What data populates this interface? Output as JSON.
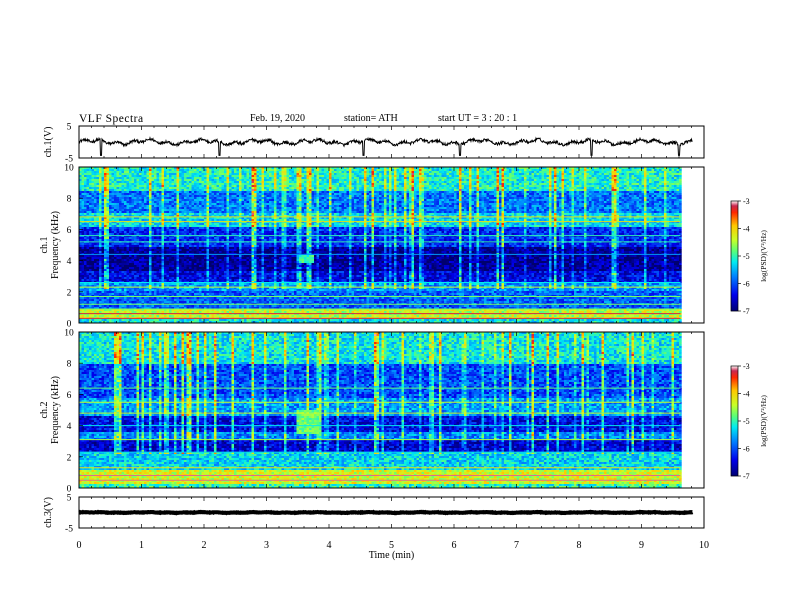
{
  "header": {
    "title": "VLF  Spectra",
    "date": "Feb. 19, 2020",
    "station": "station= ATH",
    "start": "start  UT  =    3  : 20 : 1"
  },
  "chart_data": [
    {
      "type": "line",
      "panel": "ch1-waveform",
      "ylabel": "ch.1(V)",
      "ylim": [
        -5,
        5
      ],
      "yticks": [
        5,
        -5
      ],
      "xlim": [
        0,
        10
      ],
      "color": "#000000",
      "series": [
        {
          "baseline": 0.0,
          "noise_amplitude": 1.0,
          "spike_times_min": [
            0.35,
            2.25,
            4.55,
            6.1,
            8.2,
            9.6
          ]
        }
      ]
    },
    {
      "type": "heatmap",
      "panel": "ch1-spectrogram",
      "ylabel_lines": [
        "ch.1",
        "Frequency  (kHz)"
      ],
      "ylim": [
        0,
        10
      ],
      "yticks": [
        0,
        2,
        4,
        6,
        8,
        10
      ],
      "xlim": [
        0,
        9.8
      ],
      "colorbar": {
        "label": "log(PSD)(V²/Hz)",
        "range": [
          -7,
          -3
        ],
        "ticks": [
          -3,
          -4,
          -5,
          -6,
          -7
        ]
      },
      "level_by_freq_khz": [
        {
          "band": [
            0.0,
            0.3
          ],
          "level": -5.2
        },
        {
          "band": [
            0.3,
            0.9
          ],
          "level": -4.4
        },
        {
          "band": [
            0.9,
            2.0
          ],
          "level": -5.9
        },
        {
          "band": [
            2.0,
            2.6
          ],
          "level": -5.6
        },
        {
          "band": [
            2.6,
            3.3
          ],
          "level": -6.4
        },
        {
          "band": [
            3.3,
            4.9
          ],
          "level": -6.8
        },
        {
          "band": [
            4.9,
            6.2
          ],
          "level": -6.2
        },
        {
          "band": [
            6.2,
            7.0
          ],
          "level": -5.3
        },
        {
          "band": [
            7.0,
            8.5
          ],
          "level": -5.8
        },
        {
          "band": [
            8.5,
            10.0
          ],
          "level": -5.1
        }
      ],
      "tonal_lines_khz": [
        0.3,
        0.6,
        0.9,
        1.2,
        1.7,
        2.3,
        2.6,
        4.4,
        5.2,
        5.6,
        6.5,
        6.8
      ],
      "bursts": [
        {
          "t": [
            3.5,
            3.75
          ],
          "f": [
            3.8,
            4.4
          ],
          "level": -5.2
        }
      ]
    },
    {
      "type": "heatmap",
      "panel": "ch2-spectrogram",
      "ylabel_lines": [
        "ch.2",
        "Frequency  (kHz)"
      ],
      "ylim": [
        0,
        10
      ],
      "yticks": [
        0,
        2,
        4,
        6,
        8,
        10
      ],
      "xlim": [
        0,
        9.8
      ],
      "colorbar": {
        "label": "log(PSD)(V²/Hz)",
        "range": [
          -7,
          -3
        ],
        "ticks": [
          -3,
          -4,
          -5,
          -6,
          -7
        ]
      },
      "level_by_freq_khz": [
        {
          "band": [
            0.0,
            0.3
          ],
          "level": -5.0
        },
        {
          "band": [
            0.3,
            1.2
          ],
          "level": -4.3
        },
        {
          "band": [
            1.2,
            2.3
          ],
          "level": -5.3
        },
        {
          "band": [
            2.3,
            3.1
          ],
          "level": -6.5
        },
        {
          "band": [
            3.1,
            3.6
          ],
          "level": -5.7
        },
        {
          "band": [
            3.6,
            4.6
          ],
          "level": -6.4
        },
        {
          "band": [
            4.6,
            5.8
          ],
          "level": -5.6
        },
        {
          "band": [
            5.8,
            8.0
          ],
          "level": -6.0
        },
        {
          "band": [
            8.0,
            10.0
          ],
          "level": -5.2
        }
      ],
      "tonal_lines_khz": [
        0.5,
        0.8,
        1.3,
        2.3,
        3.1,
        4.0,
        4.8,
        5.5,
        6.4
      ],
      "bursts": [
        {
          "t": [
            3.45,
            3.85
          ],
          "f": [
            3.5,
            5.0
          ],
          "level": -5.0
        }
      ]
    },
    {
      "type": "line",
      "panel": "ch3-waveform",
      "ylabel": "ch.3(V)",
      "ylim": [
        -5,
        5
      ],
      "yticks": [
        5,
        -5
      ],
      "xlim": [
        0,
        10
      ],
      "xlabel": "Time  (min)",
      "xticks": [
        0,
        1,
        2,
        3,
        4,
        5,
        6,
        7,
        8,
        9,
        10
      ],
      "color": "#000000",
      "series": [
        {
          "baseline": 0.0,
          "noise_amplitude": 0.15,
          "spike_times_min": []
        }
      ]
    }
  ]
}
